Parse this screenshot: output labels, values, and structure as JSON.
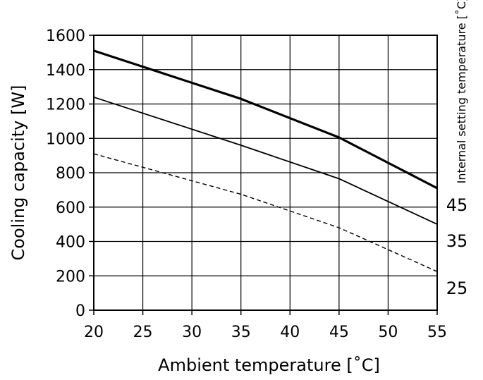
{
  "chart_data": {
    "type": "line",
    "title": "",
    "xlabel": "Ambient temperature [˚C]",
    "ylabel": "Cooling capacity [W]",
    "secondary_label": "Internal setting temperature [˚C]",
    "x": [
      20,
      35,
      45,
      55
    ],
    "xlim": [
      20,
      55
    ],
    "ylim": [
      0,
      1600
    ],
    "xticks": [
      "20",
      "25",
      "30",
      "35",
      "40",
      "45",
      "50",
      "55"
    ],
    "yticks": [
      "0",
      "200",
      "400",
      "600",
      "800",
      "1000",
      "1200",
      "1400",
      "1600"
    ],
    "grid": true,
    "series": [
      {
        "name": "45",
        "style": "thick",
        "values": [
          1510,
          1230,
          1005,
          710
        ]
      },
      {
        "name": "35",
        "style": "solid",
        "values": [
          1240,
          960,
          765,
          500
        ]
      },
      {
        "name": "25",
        "style": "dashed",
        "values": [
          910,
          675,
          480,
          225
        ]
      }
    ]
  }
}
